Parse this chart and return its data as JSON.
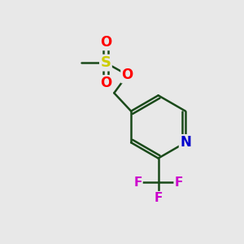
{
  "background_color": "#e8e8e8",
  "atom_colors": {
    "C": "#000000",
    "N": "#0000cc",
    "O": "#ff0000",
    "S": "#cccc00",
    "F": "#cc00cc",
    "H": "#000000"
  },
  "bond_color": "#1a4a1a",
  "bond_width": 1.8,
  "figsize": [
    3.0,
    3.0
  ],
  "dpi": 100,
  "xlim": [
    0,
    10
  ],
  "ylim": [
    0,
    10
  ]
}
